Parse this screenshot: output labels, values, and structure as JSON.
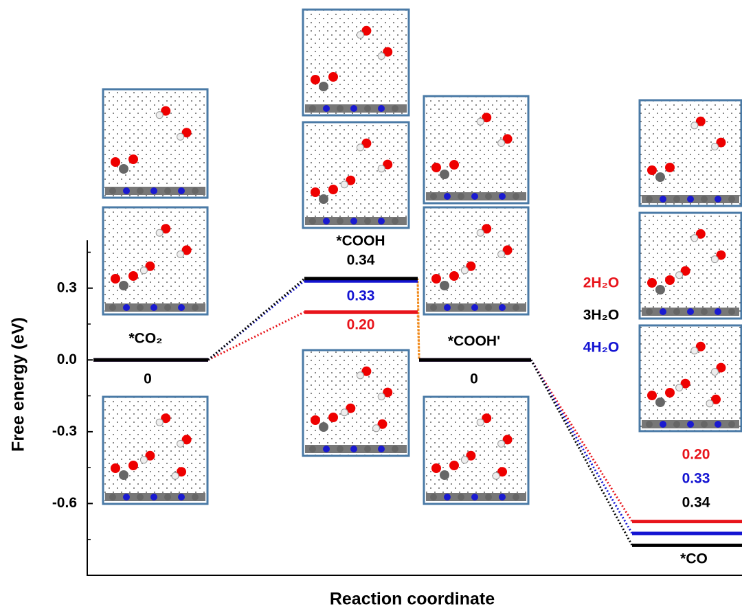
{
  "chart_data": {
    "type": "energy-levels",
    "xlabel": "Reaction coordinate",
    "ylabel": "Free energy (eV)",
    "categories": [
      "*CO₂",
      "*COOH",
      "*COOH'",
      "*CO"
    ],
    "ylim": [
      -0.9,
      0.5
    ],
    "yticks": [
      -0.6,
      -0.3,
      {
        "value": 0,
        "label": "0.0"
      },
      0.3
    ],
    "series": [
      {
        "name": "2H₂O",
        "color": "#e8141b",
        "values": [
          0,
          0.2,
          0,
          -0.675
        ],
        "value_labels": [
          null,
          "0.20",
          null,
          null
        ]
      },
      {
        "name": "3H₂O",
        "color": "#000000",
        "values": [
          0,
          0.34,
          0,
          -0.775
        ]
      },
      {
        "name": "4H₂O",
        "color": "#1414d2",
        "values": [
          0,
          0.33,
          0,
          -0.725
        ]
      }
    ],
    "annotations": [
      {
        "text": "0.20",
        "color": "#e8141b"
      },
      {
        "text": "0.33",
        "color": "#1414d2"
      },
      {
        "text": "0.34",
        "color": "#000000"
      }
    ]
  }
}
